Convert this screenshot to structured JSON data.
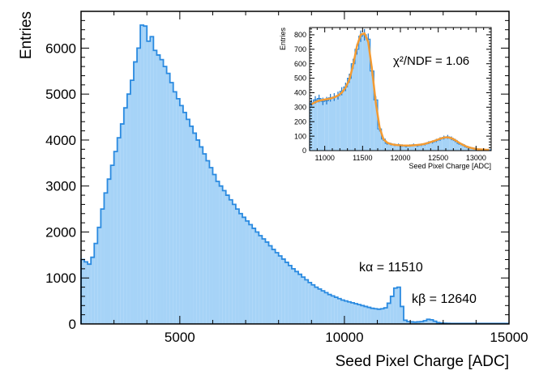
{
  "chart_data": [
    {
      "type": "histogram",
      "xlabel": "Seed Pixel Charge [ADC]",
      "ylabel": "Entries",
      "xlim": [
        2000,
        15000
      ],
      "ylim": [
        0,
        6800
      ],
      "xticks": [
        5000,
        10000,
        15000
      ],
      "yticks": [
        0,
        1000,
        2000,
        3000,
        4000,
        5000,
        6000
      ],
      "color": "#a6d3f7",
      "edge_color": "#2a8ae0",
      "bin_width": 100,
      "x": [
        2000,
        2100,
        2200,
        2300,
        2400,
        2500,
        2600,
        2700,
        2800,
        2900,
        3000,
        3100,
        3200,
        3300,
        3400,
        3500,
        3600,
        3700,
        3800,
        3900,
        4000,
        4100,
        4200,
        4300,
        4400,
        4500,
        4600,
        4700,
        4800,
        4900,
        5000,
        5100,
        5200,
        5300,
        5400,
        5500,
        5600,
        5700,
        5800,
        5900,
        6000,
        6100,
        6200,
        6300,
        6400,
        6500,
        6600,
        6700,
        6800,
        6900,
        7000,
        7100,
        7200,
        7300,
        7400,
        7500,
        7600,
        7700,
        7800,
        7900,
        8000,
        8100,
        8200,
        8300,
        8400,
        8500,
        8600,
        8700,
        8800,
        8900,
        9000,
        9100,
        9200,
        9300,
        9400,
        9500,
        9600,
        9700,
        9800,
        9900,
        10000,
        10100,
        10200,
        10300,
        10400,
        10500,
        10600,
        10700,
        10800,
        10900,
        11000,
        11100,
        11200,
        11300,
        11400,
        11500,
        11600,
        11700,
        11800,
        11900,
        12000,
        12100,
        12200,
        12300,
        12400,
        12500,
        12600,
        12700,
        12800,
        12900,
        13000,
        13100,
        13200,
        13300,
        13400,
        13500,
        13600,
        13700,
        13800,
        13900,
        14000,
        14100,
        14200,
        14300,
        14400,
        14500,
        14600,
        14700,
        14800,
        14900
      ],
      "values": [
        1400,
        1350,
        1300,
        1450,
        1750,
        2100,
        2500,
        2850,
        3150,
        3450,
        3750,
        4050,
        4350,
        4700,
        5000,
        5300,
        5700,
        6000,
        6500,
        6480,
        6150,
        6250,
        5950,
        5850,
        5750,
        5600,
        5450,
        5250,
        5050,
        4900,
        4750,
        4600,
        4450,
        4300,
        4150,
        4000,
        3850,
        3700,
        3550,
        3400,
        3250,
        3100,
        3000,
        2900,
        2800,
        2700,
        2600,
        2500,
        2400,
        2320,
        2240,
        2160,
        2080,
        2000,
        1920,
        1850,
        1780,
        1700,
        1620,
        1550,
        1480,
        1410,
        1340,
        1270,
        1200,
        1140,
        1080,
        1020,
        960,
        900,
        850,
        800,
        760,
        720,
        680,
        640,
        610,
        580,
        550,
        520,
        500,
        480,
        460,
        440,
        420,
        400,
        380,
        360,
        340,
        330,
        320,
        330,
        350,
        450,
        600,
        780,
        800,
        380,
        80,
        50,
        45,
        40,
        45,
        50,
        70,
        100,
        90,
        60,
        30,
        20,
        15,
        12,
        10,
        10,
        10,
        10,
        10,
        10,
        10,
        10,
        10,
        10,
        10,
        10,
        10,
        10,
        10,
        10,
        10,
        10
      ],
      "annotations": [
        {
          "label": "kα = 11510",
          "x": 11510
        },
        {
          "label": "kβ = 12640",
          "x": 12640
        }
      ]
    },
    {
      "type": "histogram",
      "inset": true,
      "xlabel": "Seed Pixel Charge [ADC]",
      "ylabel": "Entries",
      "xlim": [
        10800,
        13200
      ],
      "ylim": [
        0,
        850
      ],
      "xticks": [
        11000,
        11500,
        12000,
        12500,
        13000
      ],
      "yticks": [
        0,
        100,
        200,
        300,
        400,
        500,
        600,
        700,
        800
      ],
      "color": "#a6d3f7",
      "edge_color": "#2a8ae0",
      "fit_color": "#f39b33",
      "bin_width": 50,
      "x": [
        10800,
        10850,
        10900,
        10950,
        11000,
        11050,
        11100,
        11150,
        11200,
        11250,
        11300,
        11350,
        11400,
        11450,
        11500,
        11550,
        11600,
        11650,
        11700,
        11750,
        11800,
        11850,
        11900,
        11950,
        12000,
        12050,
        12100,
        12150,
        12200,
        12250,
        12300,
        12350,
        12400,
        12450,
        12500,
        12550,
        12600,
        12650,
        12700,
        12750,
        12800,
        12850,
        12900,
        12950,
        13000,
        13050,
        13100,
        13150
      ],
      "values": [
        330,
        350,
        360,
        340,
        345,
        365,
        370,
        380,
        410,
        440,
        500,
        600,
        700,
        790,
        800,
        770,
        550,
        350,
        150,
        80,
        50,
        45,
        40,
        40,
        35,
        30,
        35,
        40,
        35,
        40,
        45,
        55,
        60,
        70,
        80,
        90,
        95,
        85,
        70,
        50,
        40,
        25,
        20,
        15,
        10,
        8,
        5,
        5
      ],
      "fit_values": [
        320,
        335,
        345,
        350,
        355,
        360,
        368,
        380,
        400,
        435,
        490,
        590,
        720,
        800,
        810,
        750,
        560,
        330,
        160,
        80,
        55,
        45,
        40,
        38,
        36,
        35,
        35,
        37,
        39,
        42,
        47,
        55,
        63,
        72,
        82,
        90,
        92,
        86,
        72,
        55,
        40,
        28,
        20,
        14,
        10,
        8,
        6,
        5
      ],
      "annotations": [
        {
          "label": "χ²/NDF = 1.06"
        }
      ]
    }
  ]
}
